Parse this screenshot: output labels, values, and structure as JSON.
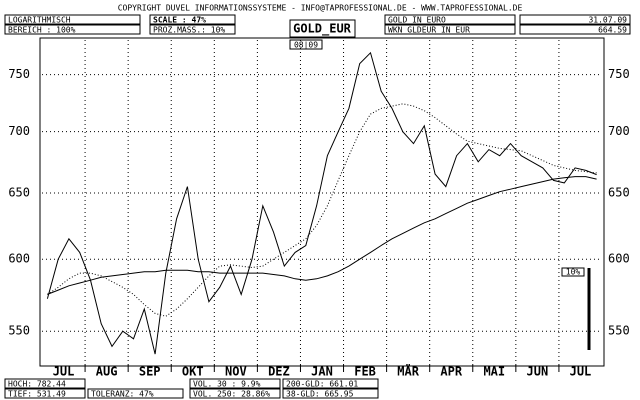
{
  "header": {
    "copyright": "COPYRIGHT DUVEL INFORMATIONSSYSTEME - INFO@TAPROFESSIONAL.DE - WWW.TAPROFESSIONAL.DE",
    "scale_mode": "LOGARITHMISCH",
    "range": "BEREICH :  100%",
    "scale": "SCALE : 47%",
    "percent": "PROZ.MASS.: 10%",
    "instrument": "GOLD IN EURO",
    "wkn": "WKN GLDEUR  IN EUR",
    "date": "31.07.09",
    "last": "664.59"
  },
  "footer": {
    "high": "HOCH: 782.44",
    "low": "TIEF: 531.49",
    "tolerance": "TOLERANZ: 47%",
    "vol30": "VOL. 30 : 9.9%",
    "vol250": "VOL. 250: 28.86%",
    "gld200": "200-GLD: 661.01",
    "gld38": "38-GLD: 665.95"
  },
  "chart_data": {
    "type": "line",
    "title": "GOLD_EUR",
    "period": "08|09",
    "scale_bar": "10%",
    "log_scale": true,
    "grid": true,
    "categories": [
      null,
      "JUL",
      null,
      null,
      null,
      "AUG",
      null,
      null,
      null,
      "SEP",
      null,
      null,
      null,
      "OKT",
      null,
      null,
      null,
      "NOV",
      null,
      null,
      null,
      "DEZ",
      null,
      null,
      null,
      "JAN",
      null,
      null,
      null,
      "FEB",
      null,
      null,
      null,
      "MÄR",
      null,
      null,
      null,
      "APR",
      null,
      null,
      null,
      "MAI",
      null,
      null,
      null,
      "JUN",
      null,
      null,
      null,
      "JUL",
      null,
      null
    ],
    "series": [
      {
        "color": "#000000",
        "style": "solid",
        "values": [
          572,
          600,
          615,
          605,
          585,
          555,
          540,
          550,
          545,
          565,
          535,
          590,
          630,
          655,
          600,
          570,
          580,
          595,
          575,
          600,
          640,
          620,
          595,
          605,
          610,
          640,
          680,
          700,
          720,
          760,
          770,
          735,
          720,
          700,
          690,
          705,
          665,
          655,
          680,
          690,
          675,
          685,
          680,
          690,
          680,
          675,
          670,
          660,
          658,
          670,
          668,
          664.59
        ]
      },
      {
        "color": "#000000",
        "style": "solid",
        "values": [
          575,
          578,
          581,
          583,
          585,
          587,
          588,
          589,
          590,
          591,
          591,
          592,
          592,
          592,
          591,
          591,
          590,
          590,
          590,
          590,
          590,
          589,
          588,
          586,
          585,
          586,
          588,
          591,
          595,
          600,
          605,
          610,
          615,
          619,
          623,
          627,
          630,
          634,
          638,
          642,
          645,
          648,
          651,
          653,
          655,
          657,
          659,
          661,
          662,
          663,
          663,
          661.01
        ]
      },
      {
        "color": "#000000",
        "style": "dotted",
        "values": [
          575,
          580,
          586,
          590,
          590,
          588,
          584,
          580,
          575,
          568,
          562,
          560,
          565,
          572,
          580,
          588,
          595,
          596,
          595,
          594,
          595,
          600,
          605,
          610,
          615,
          625,
          640,
          660,
          680,
          700,
          715,
          720,
          722,
          724,
          722,
          718,
          712,
          705,
          698,
          692,
          690,
          688,
          686,
          685,
          684,
          680,
          676,
          672,
          670,
          668,
          667,
          665.95
        ]
      }
    ],
    "ylim": [
      528,
      782
    ],
    "yticks": [
      550,
      600,
      650,
      700,
      750
    ]
  }
}
